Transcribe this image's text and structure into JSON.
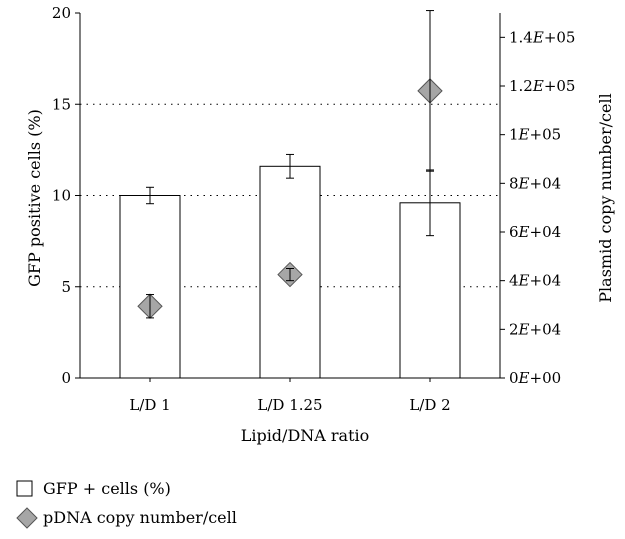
{
  "chart_data": {
    "type": "bar",
    "categories": [
      "L/D 1",
      "L/D 1.25",
      "L/D 2"
    ],
    "xlabel": "Lipid/DNA ratio",
    "ylabel": "GFP positive cells (%)",
    "y2label": "Plasmid copy number/cell",
    "ylim": [
      0,
      20
    ],
    "yticks": [
      "0",
      "5",
      "10",
      "15",
      "20"
    ],
    "y2lim": [
      0,
      150000
    ],
    "y2ticks": [
      {
        "base": "0",
        "exp": "E+00"
      },
      {
        "base": "2",
        "exp": "E+04"
      },
      {
        "base": "4",
        "exp": "E+04"
      },
      {
        "base": "6",
        "exp": "E+04"
      },
      {
        "base": "8",
        "exp": "E+04"
      },
      {
        "base": "1",
        "exp": "E+05"
      },
      {
        "base": "1.2",
        "exp": "E+05"
      },
      {
        "base": "1.4",
        "exp": "E+05"
      }
    ],
    "grid": "horizontal dotted at 5, 10, 15",
    "series": [
      {
        "name": "GFP + cells (%)",
        "axis": "left",
        "kind": "bar",
        "values": [
          10.0,
          11.6,
          9.6
        ],
        "errors": [
          0.45,
          0.65,
          1.8
        ]
      },
      {
        "name": "pDNA copy number/cell",
        "axis": "right",
        "kind": "diamond",
        "values": [
          29500,
          42500,
          118000
        ],
        "errors": [
          4800,
          2500,
          33000
        ]
      }
    ],
    "legend": [
      {
        "label": "GFP + cells (%)",
        "marker": "square"
      },
      {
        "label": "pDNA copy number/cell",
        "marker": "diamond"
      }
    ],
    "legend_position": "below",
    "colors": {
      "bar_fill": "#ffffff",
      "diamond_fill": "#a6a6a6",
      "line": "#000000"
    }
  }
}
